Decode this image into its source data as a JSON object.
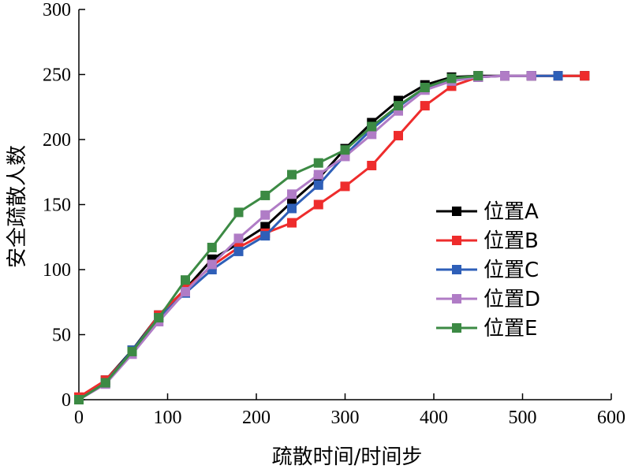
{
  "chart_data": {
    "type": "line",
    "title": "",
    "xlabel": "疏散时间/时间步",
    "ylabel": "安全疏散人数",
    "xlim": [
      0,
      600
    ],
    "ylim": [
      0,
      300
    ],
    "xticks": [
      0,
      100,
      200,
      300,
      400,
      500,
      600
    ],
    "yticks": [
      0,
      50,
      100,
      150,
      200,
      250,
      300
    ],
    "grid": false,
    "legend_position": "center-right",
    "series": [
      {
        "name": "位置A",
        "color": "#000000",
        "x": [
          0,
          30,
          60,
          90,
          120,
          150,
          180,
          210,
          240,
          270,
          300,
          330,
          360,
          390,
          420,
          450,
          480,
          510,
          540,
          570
        ],
        "y": [
          0,
          15,
          38,
          65,
          85,
          108,
          120,
          133,
          152,
          170,
          193,
          213,
          230,
          242,
          248,
          249,
          249,
          249,
          249,
          249
        ]
      },
      {
        "name": "位置B",
        "color": "#ee2c2c",
        "x": [
          0,
          30,
          60,
          90,
          120,
          150,
          180,
          210,
          240,
          270,
          300,
          330,
          360,
          390,
          420,
          450,
          480,
          510,
          540,
          570
        ],
        "y": [
          2,
          15,
          37,
          65,
          85,
          103,
          117,
          128,
          136,
          150,
          164,
          180,
          203,
          226,
          241,
          248,
          249,
          249,
          249,
          249
        ]
      },
      {
        "name": "位置C",
        "color": "#2e5fb8",
        "x": [
          0,
          30,
          60,
          90,
          120,
          150,
          180,
          210,
          240,
          270,
          300,
          330,
          360,
          390,
          420,
          450,
          480,
          510,
          540
        ],
        "y": [
          0,
          13,
          38,
          63,
          82,
          100,
          114,
          126,
          147,
          165,
          188,
          208,
          225,
          240,
          245,
          248,
          249,
          249,
          249
        ]
      },
      {
        "name": "位置D",
        "color": "#b07cc6",
        "x": [
          0,
          30,
          60,
          90,
          120,
          150,
          180,
          210,
          240,
          270,
          300,
          330,
          360,
          390,
          420,
          450,
          480,
          510
        ],
        "y": [
          0,
          12,
          35,
          60,
          83,
          104,
          124,
          142,
          158,
          173,
          187,
          204,
          222,
          238,
          245,
          248,
          249,
          249
        ]
      },
      {
        "name": "位置E",
        "color": "#3c8a44",
        "x": [
          0,
          30,
          60,
          90,
          120,
          150,
          180,
          210,
          240,
          270,
          300,
          330,
          360,
          390,
          420,
          450
        ],
        "y": [
          0,
          13,
          37,
          63,
          92,
          117,
          144,
          157,
          173,
          182,
          192,
          210,
          226,
          240,
          247,
          249
        ]
      }
    ]
  }
}
